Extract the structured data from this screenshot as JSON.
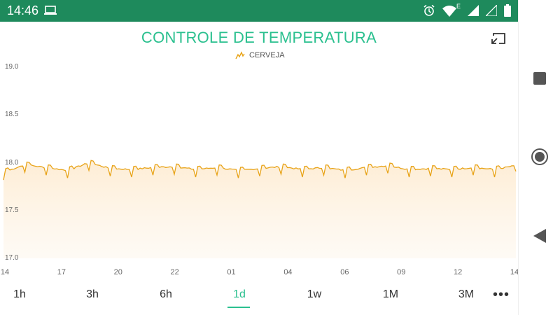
{
  "status_bar": {
    "time": "14:46",
    "icons": [
      "laptop-icon",
      "alarm-icon",
      "wifi-icon",
      "signal-icon",
      "signal-icon",
      "battery-icon"
    ],
    "network_label": "E",
    "bg_color": "#1e8a5c"
  },
  "app": {
    "title": "CONTROLE DE TEMPERATURA",
    "fullscreen_icon": "exit-fullscreen-icon",
    "accent_color": "#2bc08f"
  },
  "chart_data": {
    "type": "line",
    "legend": [
      "CERVEJA"
    ],
    "series": [
      {
        "name": "CERVEJA",
        "color": "#e8a317",
        "x": [
          "14:00",
          "15:00",
          "16:00",
          "17:00",
          "18:00",
          "19:00",
          "20:00",
          "21:00",
          "22:00",
          "23:00",
          "00:00",
          "01:00",
          "02:00",
          "03:00",
          "04:00",
          "05:00",
          "06:00",
          "07:00",
          "08:00",
          "09:00",
          "10:00",
          "11:00",
          "12:00",
          "13:00",
          "14:00"
        ],
        "values": [
          17.9,
          17.98,
          17.95,
          17.92,
          18.0,
          17.94,
          17.93,
          17.95,
          17.96,
          17.93,
          17.95,
          17.92,
          17.94,
          17.96,
          17.93,
          17.95,
          17.92,
          17.95,
          17.97,
          17.93,
          17.94,
          17.93,
          17.95,
          17.93,
          17.97
        ]
      }
    ],
    "y_ticks": [
      "19.0",
      "18.5",
      "18.0",
      "17.5",
      "17.0"
    ],
    "x_ticks": [
      "14",
      "17",
      "20",
      "22",
      "01",
      "04",
      "06",
      "09",
      "12",
      "14"
    ],
    "ylim": [
      17.0,
      19.0
    ],
    "area_fill": true,
    "grid": false
  },
  "range_selector": {
    "options": [
      "1h",
      "3h",
      "6h",
      "1d",
      "1w",
      "1M",
      "3M"
    ],
    "selected": "1d",
    "more_label": "•••"
  },
  "nav_bar": {
    "buttons": [
      "recents-icon",
      "home-icon",
      "back-icon"
    ]
  }
}
